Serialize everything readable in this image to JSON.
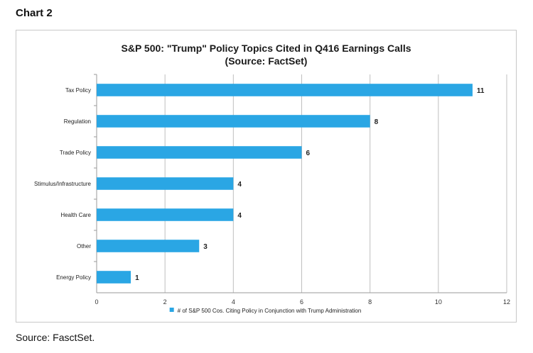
{
  "page": {
    "heading": "Chart 2",
    "source_note": "Source: FasctSet."
  },
  "chart_data": {
    "type": "bar",
    "orientation": "horizontal",
    "title": "S&P 500: \"Trump\" Policy Topics Cited in Q416 Earnings Calls",
    "subtitle": "(Source: FactSet)",
    "categories": [
      "Tax Policy",
      "Regulation",
      "Trade Policy",
      "Stimulus/Infrastructure",
      "Health Care",
      "Other",
      "Energy Policy"
    ],
    "series": [
      {
        "name": "# of S&P 500 Cos. Citing Policy in Conjunction with Trump Administration",
        "values": [
          11,
          8,
          6,
          4,
          4,
          3,
          1
        ]
      }
    ],
    "xlim": [
      0,
      12
    ],
    "xticks": [
      "0",
      "2",
      "4",
      "6",
      "8",
      "10",
      "12"
    ],
    "grid": "vertical",
    "legend_position": "bottom",
    "data_labels": true,
    "bar_color": "#2aa6e4",
    "grid_color": "#bfbfbf"
  }
}
